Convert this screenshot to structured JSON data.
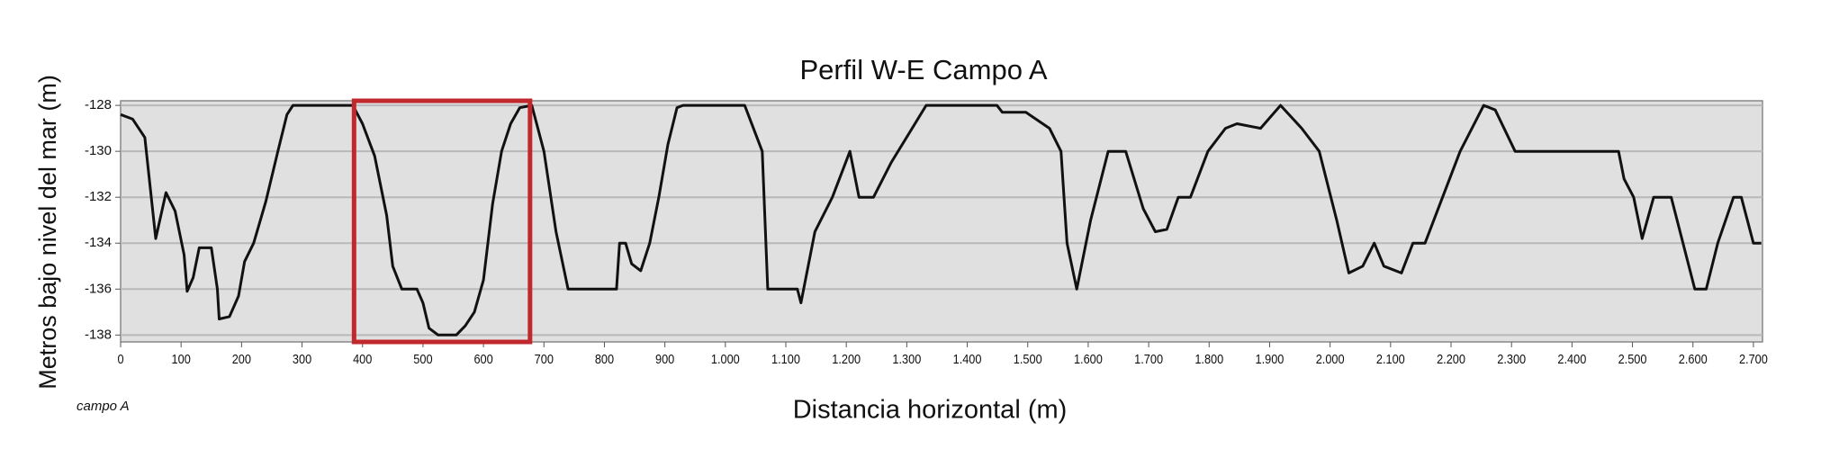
{
  "chart_data": {
    "type": "line",
    "title": "Perfil W-E Campo A",
    "xlabel": "Distancia horizontal (m)",
    "ylabel": "Metros bajo nivel del mar (m)",
    "annotation": "campo A",
    "color": "#111111",
    "highlight_color": "#c0282d",
    "highlight_x": [
      386,
      677
    ],
    "grid": true,
    "xlim": [
      0,
      2715
    ],
    "ylim": [
      -138.3,
      -127.8
    ],
    "yticks": [
      -138,
      -136,
      -134,
      -132,
      -130,
      -128
    ],
    "xticks": [
      0,
      100,
      200,
      300,
      400,
      500,
      600,
      700,
      800,
      900,
      {
        "value": 1000,
        "label": "1.000"
      },
      {
        "value": 1100,
        "label": "1.100"
      },
      {
        "value": 1200,
        "label": "1.200"
      },
      {
        "value": 1300,
        "label": "1.300"
      },
      {
        "value": 1400,
        "label": "1.400"
      },
      {
        "value": 1500,
        "label": "1.500"
      },
      {
        "value": 1600,
        "label": "1.600"
      },
      {
        "value": 1700,
        "label": "1.700"
      },
      {
        "value": 1800,
        "label": "1.800"
      },
      {
        "value": 1900,
        "label": "1.900"
      },
      {
        "value": 2000,
        "label": "2.000"
      },
      {
        "value": 2100,
        "label": "2.100"
      },
      {
        "value": 2200,
        "label": "2.200"
      },
      {
        "value": 2300,
        "label": "2.300"
      },
      {
        "value": 2400,
        "label": "2.400"
      },
      {
        "value": 2500,
        "label": "2.500"
      },
      {
        "value": 2600,
        "label": "2.600"
      },
      {
        "value": 2700,
        "label": "2.700"
      }
    ],
    "x": [
      0,
      20,
      40,
      58,
      75,
      90,
      105,
      110,
      120,
      130,
      150,
      160,
      163,
      180,
      195,
      205,
      220,
      240,
      260,
      275,
      285,
      384,
      400,
      420,
      440,
      450,
      465,
      490,
      500,
      510,
      525,
      555,
      570,
      585,
      600,
      615,
      630,
      645,
      660,
      680,
      700,
      720,
      740,
      820,
      825,
      835,
      845,
      860,
      875,
      890,
      905,
      920,
      930,
      1032,
      1061,
      1070,
      1119,
      1125,
      1148,
      1177,
      1206,
      1221,
      1245,
      1274,
      1332,
      1449,
      1458,
      1497,
      1536,
      1555,
      1565,
      1581,
      1604,
      1633,
      1662,
      1691,
      1711,
      1730,
      1749,
      1769,
      1798,
      1827,
      1846,
      1885,
      1918,
      1953,
      1982,
      2011,
      2031,
      2054,
      2073,
      2089,
      2118,
      2137,
      2157,
      2186,
      2215,
      2254,
      2273,
      2306,
      2477,
      2486,
      2502,
      2516,
      2535,
      2564,
      2603,
      2622,
      2641,
      2667,
      2680,
      2700,
      2713
    ],
    "values": [
      -128.4,
      -128.6,
      -129.4,
      -133.8,
      -131.8,
      -132.6,
      -134.5,
      -136.1,
      -135.5,
      -134.2,
      -134.2,
      -136,
      -137.3,
      -137.2,
      -136.3,
      -134.8,
      -134,
      -132.2,
      -130,
      -128.4,
      -128,
      -128,
      -128.8,
      -130.2,
      -132.8,
      -135,
      -136,
      -136,
      -136.6,
      -137.7,
      -138,
      -138,
      -137.6,
      -137,
      -135.6,
      -132.3,
      -130,
      -128.8,
      -128.1,
      -128,
      -130,
      -133.5,
      -136,
      -136,
      -134,
      -134,
      -134.9,
      -135.2,
      -134,
      -132,
      -129.7,
      -128.1,
      -128,
      -128,
      -130,
      -136,
      -136,
      -136.6,
      -133.5,
      -132,
      -130,
      -132,
      -132,
      -130.5,
      -128,
      -128,
      -128.3,
      -128.3,
      -129,
      -130,
      -134,
      -136,
      -133,
      -130,
      -130,
      -132.5,
      -133.5,
      -133.4,
      -132,
      -132,
      -130,
      -129,
      -128.8,
      -129,
      -128,
      -129,
      -130,
      -133,
      -135.3,
      -135,
      -134,
      -135,
      -135.3,
      -134,
      -134,
      -132,
      -130,
      -128,
      -128.2,
      -130,
      -130,
      -131.2,
      -132,
      -133.8,
      -132,
      -132,
      -136,
      -136,
      -134,
      -132,
      -132,
      -134,
      -134
    ]
  }
}
